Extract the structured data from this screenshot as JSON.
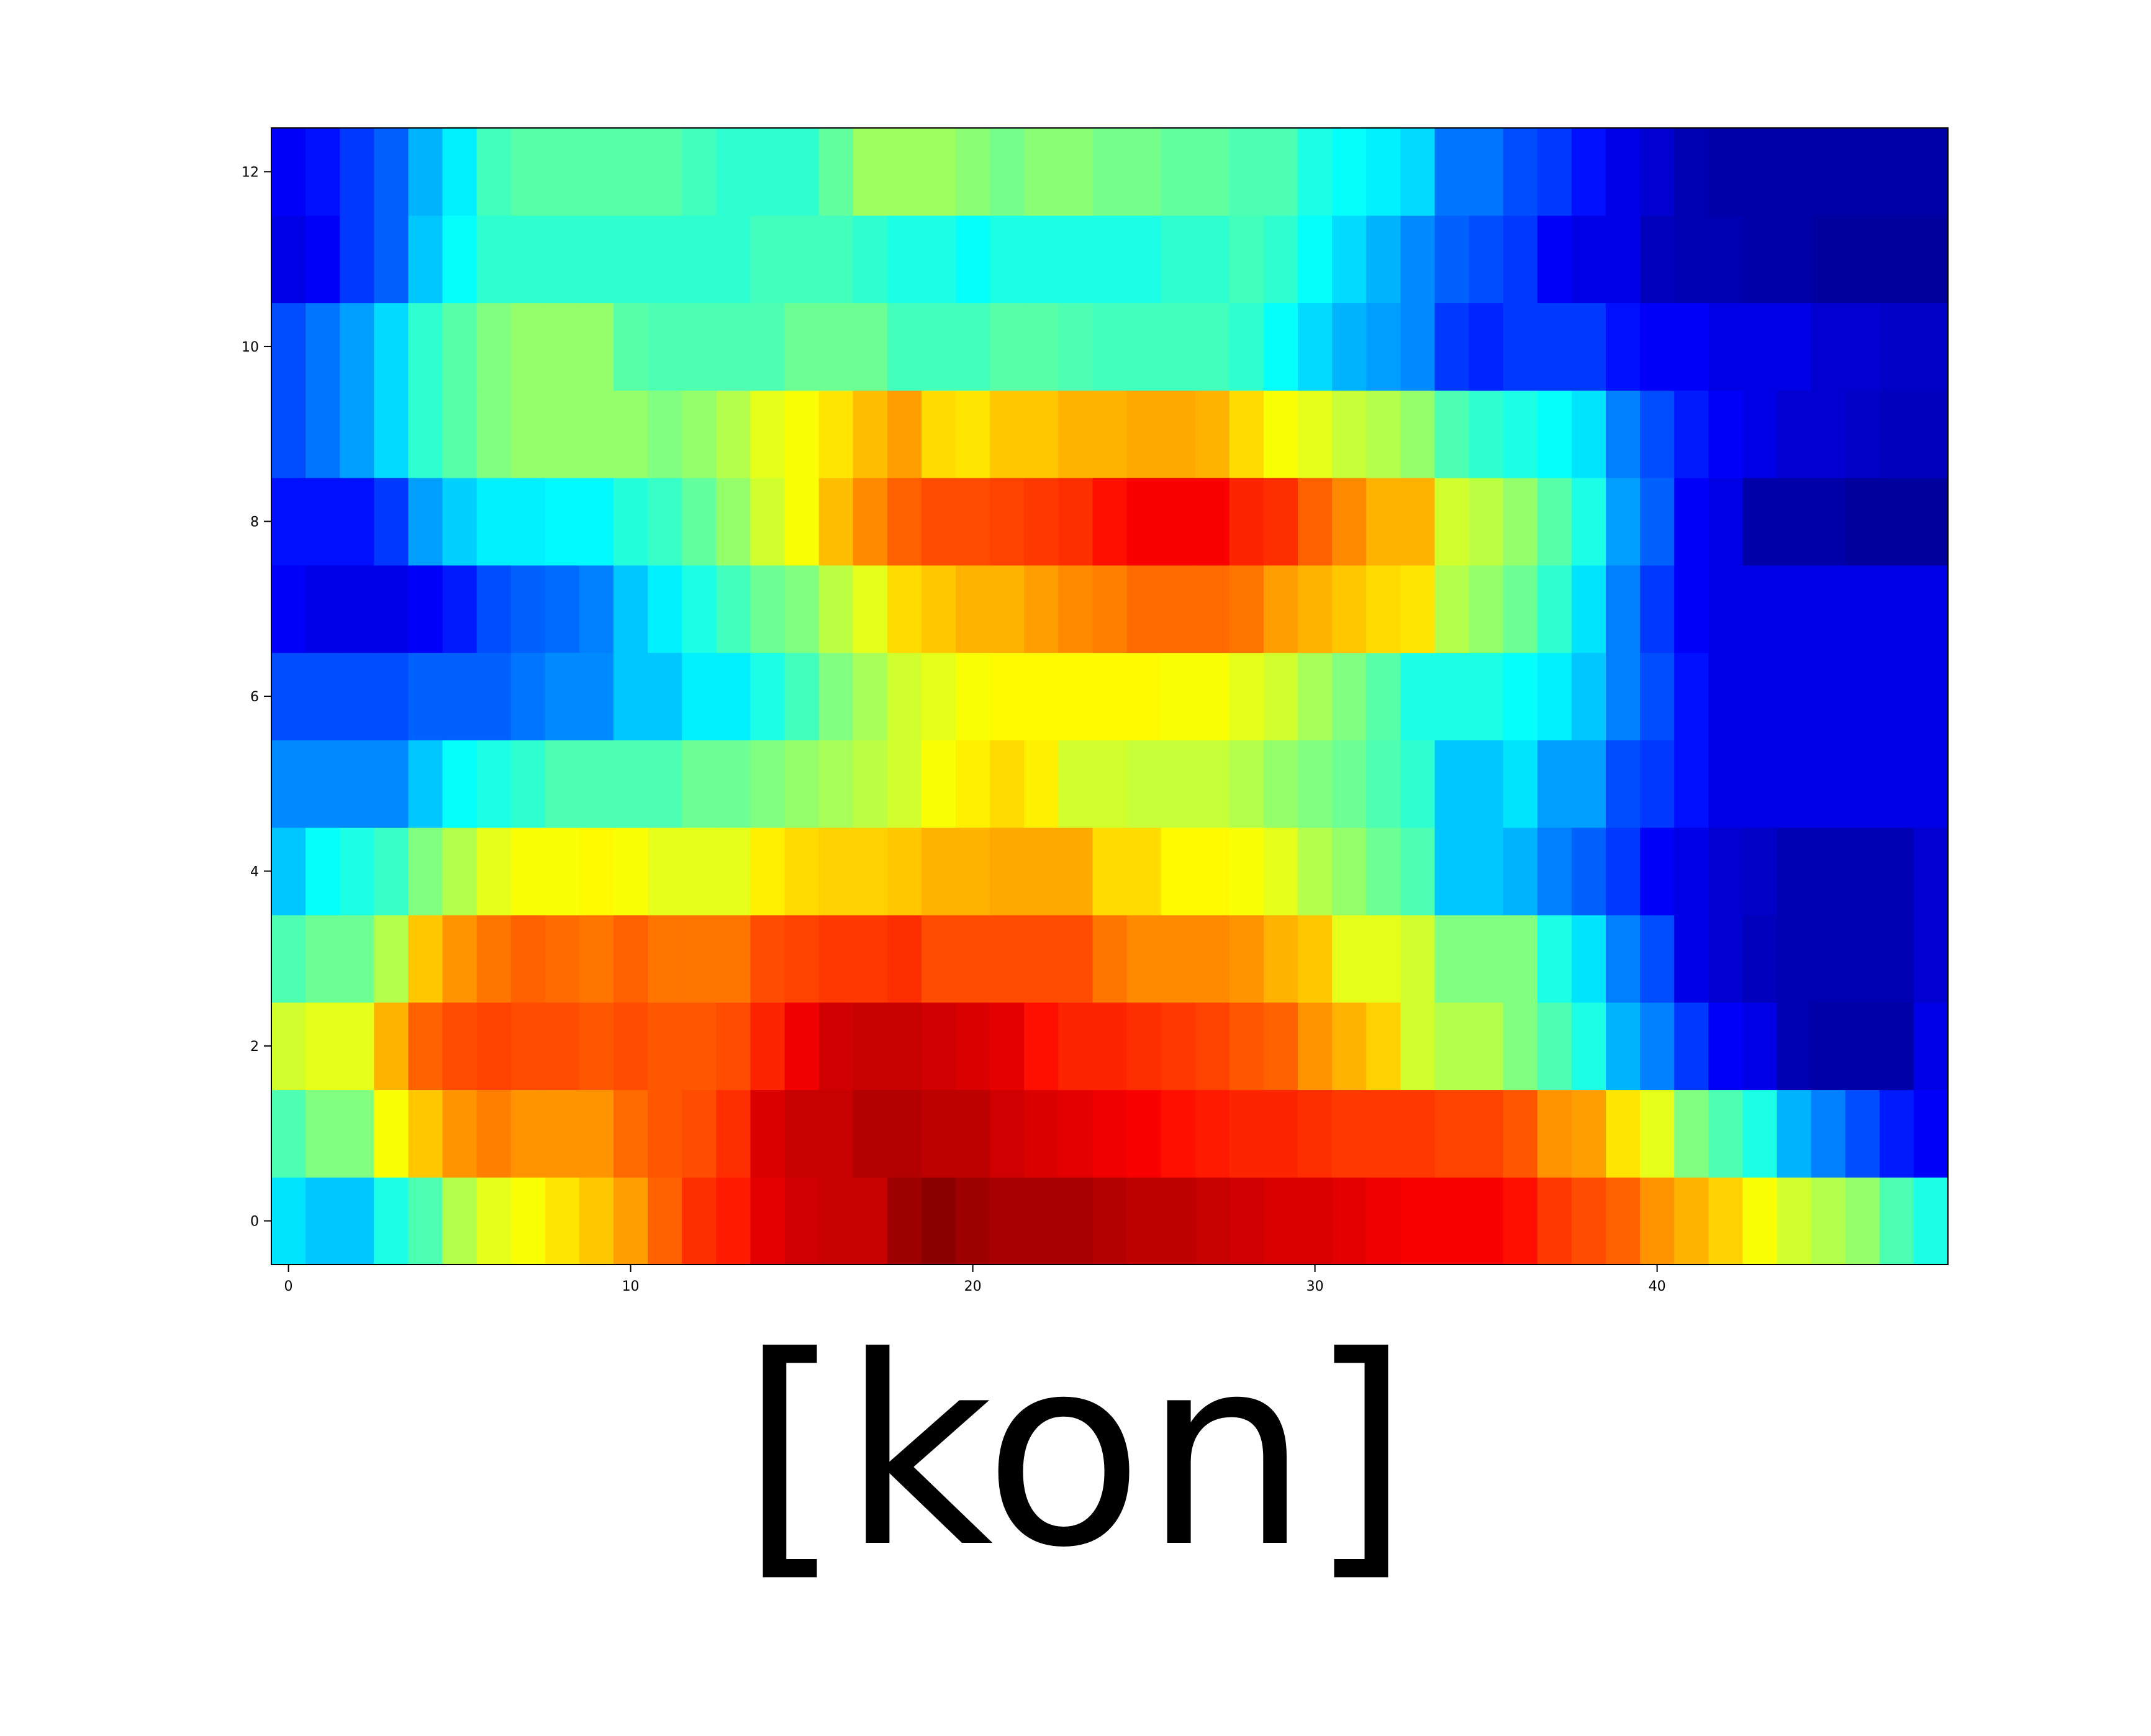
{
  "caption": "[kon]",
  "chart_data": {
    "type": "heatmap",
    "colormap": "jet",
    "value_range": [
      0,
      1
    ],
    "x_ticks": [
      0,
      10,
      20,
      30,
      40
    ],
    "y_ticks": [
      0,
      2,
      4,
      6,
      8,
      10,
      12
    ],
    "x_tick_labels": [
      "0",
      "10",
      "20",
      "30",
      "40"
    ],
    "y_tick_labels": [
      "0",
      "2",
      "4",
      "6",
      "8",
      "10",
      "12"
    ],
    "xlim": [
      -0.5,
      48.5
    ],
    "ylim": [
      -0.5,
      12.5
    ],
    "title": "",
    "xlabel": "",
    "ylabel": "",
    "rows": [
      [
        0.35,
        0.32,
        0.32,
        0.4,
        0.45,
        0.55,
        0.6,
        0.62,
        0.65,
        0.68,
        0.72,
        0.78,
        0.83,
        0.85,
        0.9,
        0.92,
        0.93,
        0.93,
        0.97,
        0.99,
        0.97,
        0.96,
        0.96,
        0.96,
        0.95,
        0.94,
        0.94,
        0.93,
        0.92,
        0.91,
        0.91,
        0.9,
        0.89,
        0.88,
        0.88,
        0.88,
        0.86,
        0.82,
        0.8,
        0.78,
        0.73,
        0.7,
        0.67,
        0.62,
        0.58,
        0.55,
        0.52,
        0.45,
        0.4
      ],
      [
        0.45,
        0.5,
        0.5,
        0.62,
        0.68,
        0.73,
        0.75,
        0.73,
        0.73,
        0.73,
        0.77,
        0.79,
        0.8,
        0.83,
        0.91,
        0.93,
        0.93,
        0.95,
        0.95,
        0.94,
        0.94,
        0.92,
        0.91,
        0.9,
        0.89,
        0.88,
        0.86,
        0.85,
        0.84,
        0.84,
        0.83,
        0.82,
        0.82,
        0.82,
        0.81,
        0.81,
        0.79,
        0.73,
        0.72,
        0.65,
        0.6,
        0.5,
        0.45,
        0.4,
        0.3,
        0.25,
        0.2,
        0.15,
        0.12
      ],
      [
        0.58,
        0.6,
        0.6,
        0.7,
        0.78,
        0.8,
        0.81,
        0.8,
        0.8,
        0.79,
        0.8,
        0.79,
        0.79,
        0.8,
        0.84,
        0.89,
        0.92,
        0.93,
        0.93,
        0.92,
        0.91,
        0.9,
        0.86,
        0.84,
        0.84,
        0.83,
        0.82,
        0.81,
        0.79,
        0.78,
        0.73,
        0.7,
        0.67,
        0.58,
        0.55,
        0.55,
        0.5,
        0.45,
        0.4,
        0.3,
        0.25,
        0.18,
        0.12,
        0.1,
        0.05,
        0.04,
        0.04,
        0.04,
        0.1
      ],
      [
        0.45,
        0.48,
        0.48,
        0.55,
        0.68,
        0.73,
        0.76,
        0.78,
        0.77,
        0.76,
        0.78,
        0.76,
        0.76,
        0.76,
        0.8,
        0.81,
        0.82,
        0.82,
        0.83,
        0.8,
        0.8,
        0.8,
        0.8,
        0.8,
        0.76,
        0.74,
        0.74,
        0.74,
        0.73,
        0.7,
        0.68,
        0.6,
        0.6,
        0.58,
        0.5,
        0.5,
        0.5,
        0.4,
        0.35,
        0.25,
        0.2,
        0.1,
        0.08,
        0.06,
        0.05,
        0.05,
        0.05,
        0.05,
        0.08
      ],
      [
        0.32,
        0.38,
        0.4,
        0.43,
        0.5,
        0.55,
        0.6,
        0.62,
        0.62,
        0.63,
        0.62,
        0.6,
        0.6,
        0.6,
        0.64,
        0.66,
        0.67,
        0.67,
        0.68,
        0.7,
        0.7,
        0.71,
        0.71,
        0.71,
        0.66,
        0.66,
        0.63,
        0.63,
        0.62,
        0.6,
        0.55,
        0.52,
        0.48,
        0.45,
        0.32,
        0.32,
        0.3,
        0.25,
        0.22,
        0.18,
        0.12,
        0.1,
        0.08,
        0.07,
        0.05,
        0.05,
        0.05,
        0.05,
        0.08
      ],
      [
        0.26,
        0.26,
        0.26,
        0.26,
        0.32,
        0.38,
        0.4,
        0.42,
        0.45,
        0.45,
        0.45,
        0.45,
        0.48,
        0.48,
        0.5,
        0.52,
        0.54,
        0.56,
        0.58,
        0.62,
        0.64,
        0.66,
        0.64,
        0.58,
        0.58,
        0.57,
        0.57,
        0.57,
        0.55,
        0.52,
        0.5,
        0.48,
        0.45,
        0.42,
        0.32,
        0.32,
        0.35,
        0.28,
        0.28,
        0.2,
        0.18,
        0.14,
        0.1,
        0.1,
        0.1,
        0.1,
        0.1,
        0.1,
        0.1
      ],
      [
        0.2,
        0.2,
        0.2,
        0.2,
        0.22,
        0.22,
        0.22,
        0.24,
        0.26,
        0.26,
        0.32,
        0.32,
        0.36,
        0.36,
        0.4,
        0.44,
        0.5,
        0.54,
        0.58,
        0.6,
        0.62,
        0.63,
        0.63,
        0.63,
        0.63,
        0.63,
        0.62,
        0.62,
        0.6,
        0.58,
        0.54,
        0.5,
        0.46,
        0.4,
        0.4,
        0.4,
        0.38,
        0.36,
        0.32,
        0.25,
        0.2,
        0.14,
        0.1,
        0.1,
        0.1,
        0.1,
        0.1,
        0.1,
        0.1
      ],
      [
        0.12,
        0.1,
        0.1,
        0.1,
        0.12,
        0.15,
        0.2,
        0.22,
        0.23,
        0.25,
        0.32,
        0.36,
        0.4,
        0.44,
        0.48,
        0.5,
        0.56,
        0.6,
        0.66,
        0.68,
        0.7,
        0.7,
        0.72,
        0.74,
        0.75,
        0.77,
        0.77,
        0.77,
        0.76,
        0.72,
        0.7,
        0.68,
        0.66,
        0.65,
        0.55,
        0.52,
        0.48,
        0.42,
        0.35,
        0.25,
        0.18,
        0.12,
        0.1,
        0.1,
        0.1,
        0.1,
        0.1,
        0.1,
        0.1
      ],
      [
        0.14,
        0.14,
        0.14,
        0.18,
        0.28,
        0.33,
        0.36,
        0.36,
        0.37,
        0.37,
        0.41,
        0.43,
        0.47,
        0.52,
        0.58,
        0.62,
        0.69,
        0.74,
        0.78,
        0.8,
        0.8,
        0.81,
        0.82,
        0.83,
        0.86,
        0.88,
        0.88,
        0.88,
        0.84,
        0.83,
        0.78,
        0.74,
        0.7,
        0.7,
        0.58,
        0.56,
        0.52,
        0.46,
        0.4,
        0.28,
        0.22,
        0.12,
        0.1,
        0.04,
        0.04,
        0.04,
        0.03,
        0.03,
        0.03
      ],
      [
        0.2,
        0.24,
        0.28,
        0.34,
        0.42,
        0.46,
        0.5,
        0.52,
        0.52,
        0.52,
        0.52,
        0.5,
        0.52,
        0.55,
        0.6,
        0.62,
        0.65,
        0.69,
        0.72,
        0.66,
        0.65,
        0.68,
        0.68,
        0.7,
        0.7,
        0.71,
        0.71,
        0.7,
        0.66,
        0.62,
        0.6,
        0.57,
        0.55,
        0.52,
        0.45,
        0.42,
        0.4,
        0.38,
        0.35,
        0.25,
        0.2,
        0.15,
        0.12,
        0.1,
        0.08,
        0.08,
        0.07,
        0.06,
        0.06
      ],
      [
        0.2,
        0.24,
        0.28,
        0.34,
        0.42,
        0.46,
        0.5,
        0.52,
        0.52,
        0.52,
        0.46,
        0.45,
        0.45,
        0.45,
        0.45,
        0.48,
        0.48,
        0.48,
        0.44,
        0.44,
        0.44,
        0.46,
        0.46,
        0.45,
        0.44,
        0.44,
        0.44,
        0.44,
        0.42,
        0.38,
        0.34,
        0.3,
        0.28,
        0.26,
        0.18,
        0.16,
        0.18,
        0.18,
        0.18,
        0.14,
        0.12,
        0.12,
        0.1,
        0.1,
        0.1,
        0.08,
        0.08,
        0.07,
        0.07
      ],
      [
        0.1,
        0.12,
        0.18,
        0.22,
        0.32,
        0.38,
        0.42,
        0.42,
        0.42,
        0.42,
        0.42,
        0.42,
        0.42,
        0.42,
        0.44,
        0.44,
        0.44,
        0.42,
        0.4,
        0.4,
        0.38,
        0.4,
        0.4,
        0.4,
        0.4,
        0.4,
        0.42,
        0.42,
        0.44,
        0.42,
        0.38,
        0.34,
        0.3,
        0.26,
        0.22,
        0.2,
        0.18,
        0.12,
        0.1,
        0.1,
        0.06,
        0.05,
        0.05,
        0.04,
        0.04,
        0.03,
        0.03,
        0.03,
        0.03
      ],
      [
        0.12,
        0.14,
        0.18,
        0.22,
        0.3,
        0.36,
        0.44,
        0.46,
        0.46,
        0.46,
        0.46,
        0.46,
        0.44,
        0.42,
        0.42,
        0.42,
        0.47,
        0.53,
        0.53,
        0.53,
        0.51,
        0.49,
        0.51,
        0.51,
        0.49,
        0.49,
        0.47,
        0.47,
        0.45,
        0.45,
        0.4,
        0.38,
        0.36,
        0.34,
        0.24,
        0.24,
        0.2,
        0.18,
        0.14,
        0.1,
        0.08,
        0.05,
        0.04,
        0.04,
        0.04,
        0.04,
        0.04,
        0.04,
        0.04
      ]
    ]
  }
}
